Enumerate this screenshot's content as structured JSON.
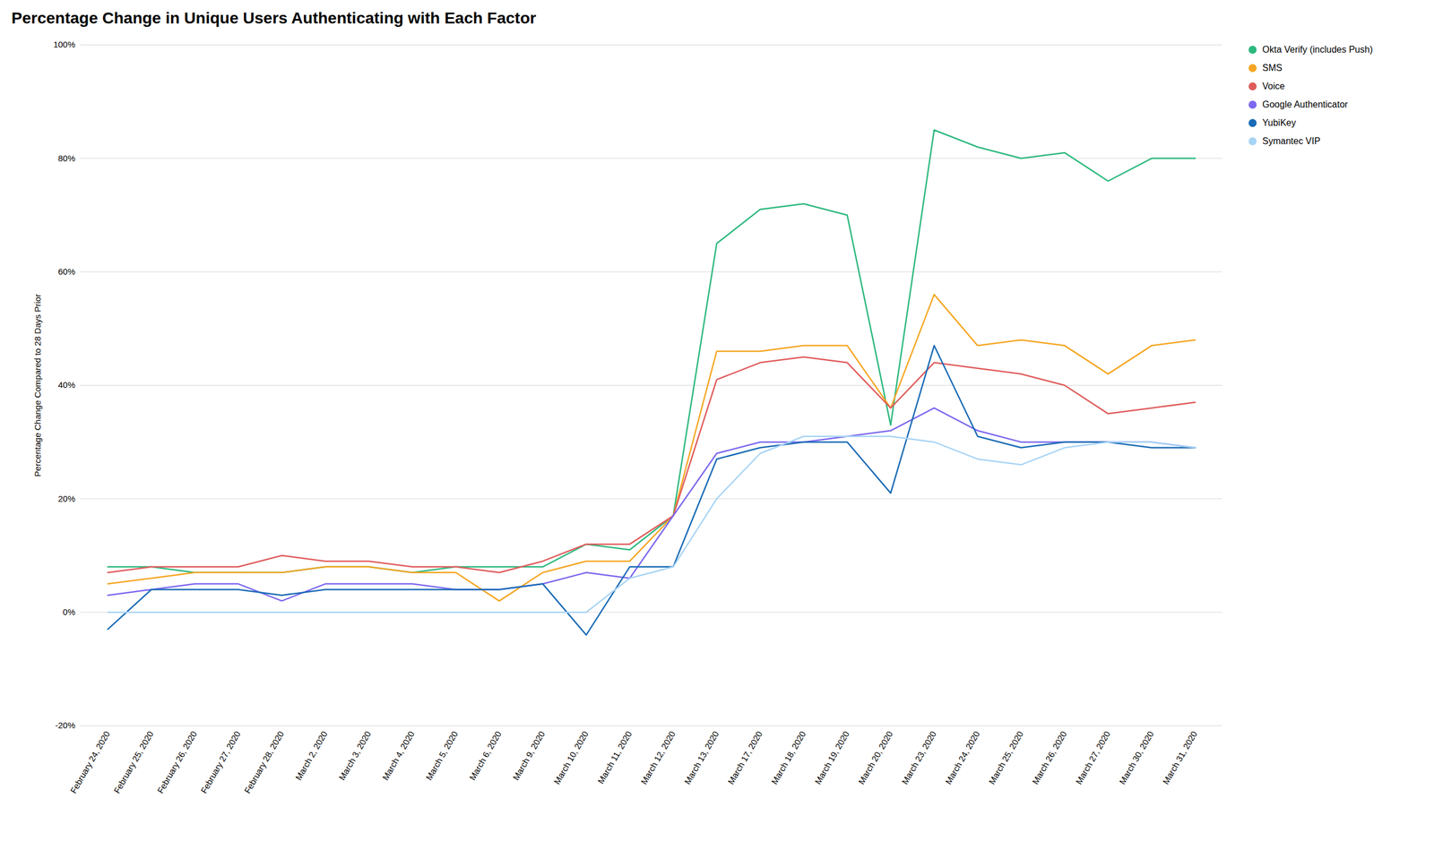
{
  "chart_data": {
    "type": "line",
    "title": "Percentage Change in Unique Users Authenticating with Each Factor",
    "ylabel": "Percentage Change Compared to 28 Days Prior",
    "categories": [
      "February 24, 2020",
      "February 25, 2020",
      "February 26, 2020",
      "February 27, 2020",
      "February 28, 2020",
      "March 2, 2020",
      "March 3, 2020",
      "March 4, 2020",
      "March 5, 2020",
      "March 6, 2020",
      "March 9, 2020",
      "March 10, 2020",
      "March 11, 2020",
      "March 12, 2020",
      "March 13, 2020",
      "March 17, 2020",
      "March 18, 2020",
      "March 19, 2020",
      "March 20, 2020",
      "March 23, 2020",
      "March 24, 2020",
      "March 25, 2020",
      "March 26, 2020",
      "March 27, 2020",
      "March 30, 2020",
      "March 31, 2020"
    ],
    "series": [
      {
        "name": "Okta Verify (includes Push)",
        "color": "#2db87e",
        "values": [
          8,
          8,
          7,
          7,
          7,
          8,
          8,
          7,
          8,
          8,
          8,
          12,
          11,
          17,
          65,
          71,
          72,
          70,
          33,
          85,
          82,
          80,
          81,
          76,
          80,
          80
        ]
      },
      {
        "name": "SMS",
        "color": "#f5a623",
        "values": [
          5,
          6,
          7,
          7,
          7,
          8,
          8,
          7,
          7,
          2,
          7,
          9,
          9,
          17,
          46,
          46,
          47,
          47,
          36,
          56,
          47,
          48,
          47,
          42,
          47,
          48
        ]
      },
      {
        "name": "Voice",
        "color": "#e05c5c",
        "values": [
          7,
          8,
          8,
          8,
          10,
          9,
          9,
          8,
          8,
          7,
          9,
          12,
          12,
          17,
          41,
          44,
          45,
          44,
          36,
          44,
          43,
          42,
          40,
          35,
          36,
          37
        ]
      },
      {
        "name": "Google Authenticator",
        "color": "#7b68ee",
        "values": [
          3,
          4,
          5,
          5,
          2,
          5,
          5,
          5,
          4,
          4,
          5,
          7,
          6,
          17,
          28,
          30,
          30,
          31,
          32,
          36,
          32,
          30,
          30,
          30,
          30,
          29
        ]
      },
      {
        "name": "YubiKey",
        "color": "#1a6bb5",
        "values": [
          -3,
          4,
          4,
          4,
          3,
          4,
          4,
          4,
          4,
          4,
          5,
          -4,
          8,
          8,
          27,
          29,
          30,
          30,
          21,
          47,
          31,
          29,
          30,
          30,
          29,
          29
        ]
      },
      {
        "name": "Symantec VIP",
        "color": "#a8d4f5",
        "values": [
          0,
          0,
          0,
          0,
          0,
          0,
          0,
          0,
          0,
          0,
          0,
          0,
          6,
          8,
          20,
          28,
          31,
          31,
          31,
          30,
          27,
          26,
          29,
          30,
          30,
          29
        ]
      }
    ],
    "ylim": [
      -20,
      100
    ],
    "yticks": [
      {
        "value": -20,
        "label": "-20%"
      },
      {
        "value": 0,
        "label": "0%"
      },
      {
        "value": 20,
        "label": "20%"
      },
      {
        "value": 40,
        "label": "40%"
      },
      {
        "value": 60,
        "label": "60%"
      },
      {
        "value": 80,
        "label": "80%"
      },
      {
        "value": 100,
        "label": "100%"
      }
    ],
    "grid": true,
    "legend": "right"
  }
}
